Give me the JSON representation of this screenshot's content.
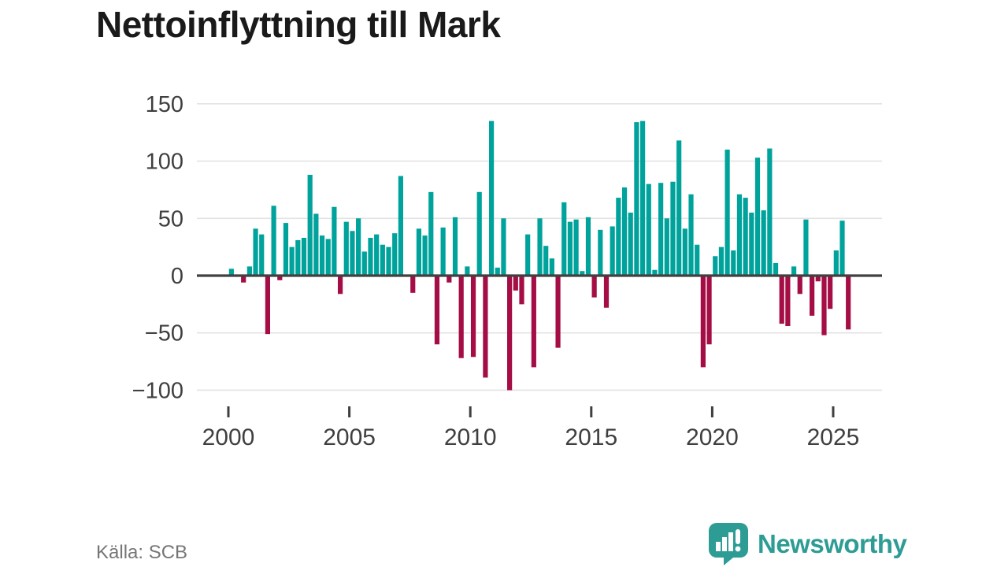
{
  "title": "Nettoinflyttning till Mark",
  "source_label": "Källa: SCB",
  "branding": {
    "name": "Newsworthy",
    "logo_icon": "bar-chart-speech-bubble",
    "color": "#2d9c94"
  },
  "colors": {
    "positive_bar": "#00a39c",
    "negative_bar": "#a50d45",
    "gridline": "#e3e3e3",
    "zero_line": "#404040",
    "axis_text": "#3f3f3f",
    "title_text": "#1a1a1a",
    "source_text": "#767676"
  },
  "chart_data": {
    "type": "bar",
    "title": "Nettoinflyttning till Mark",
    "xlabel": "",
    "ylabel": "",
    "frequency": "quarterly",
    "start_year": 2000,
    "start_quarter": 1,
    "y_ticks": [
      150,
      100,
      50,
      0,
      -50,
      -100
    ],
    "ylim": [
      -115,
      160
    ],
    "x_tick_labels": [
      2000,
      2005,
      2010,
      2015,
      2020,
      2025
    ],
    "grid": "horizontal-only",
    "legend": "none",
    "values": [
      6,
      0,
      -6,
      8,
      41,
      36,
      -51,
      61,
      -4,
      46,
      25,
      31,
      33,
      88,
      54,
      35,
      32,
      60,
      -16,
      47,
      39,
      50,
      21,
      33,
      36,
      27,
      25,
      37,
      87,
      0,
      -15,
      41,
      35,
      73,
      -60,
      42,
      -6,
      51,
      -72,
      8,
      -71,
      73,
      -89,
      135,
      7,
      50,
      -100,
      -13,
      -25,
      36,
      -80,
      50,
      26,
      15,
      -63,
      64,
      47,
      49,
      4,
      51,
      -19,
      40,
      -28,
      43,
      68,
      77,
      55,
      134,
      135,
      80,
      5,
      81,
      50,
      82,
      118,
      41,
      71,
      27,
      -80,
      -60,
      17,
      25,
      110,
      22,
      71,
      68,
      55,
      103,
      57,
      111,
      11,
      -42,
      -44,
      8,
      -16,
      49,
      -35,
      -5,
      -52,
      -29,
      22,
      48,
      -47
    ]
  }
}
